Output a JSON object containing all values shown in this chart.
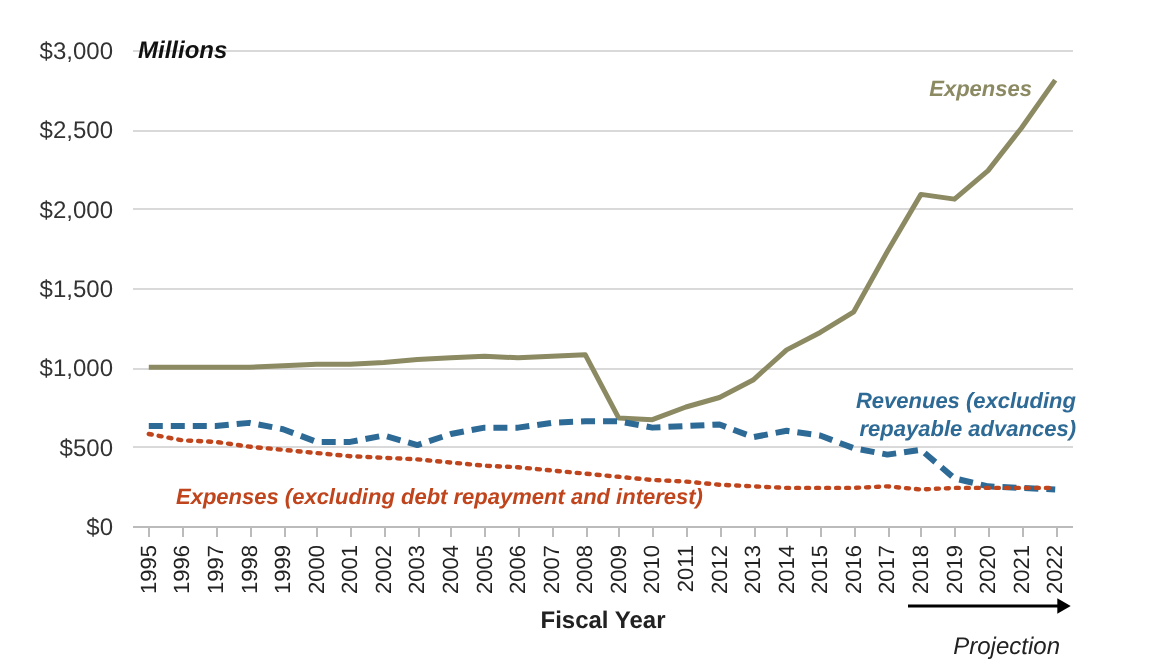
{
  "chart_data": {
    "type": "line",
    "ylabel": "Millions",
    "xlabel": "Fiscal Year",
    "categories": [
      "1995",
      "1996",
      "1997",
      "1998",
      "1999",
      "2000",
      "2001",
      "2002",
      "2003",
      "2004",
      "2005",
      "2006",
      "2007",
      "2008",
      "2009",
      "2010",
      "2011",
      "2012",
      "2013",
      "2014",
      "2015",
      "2016",
      "2017",
      "2018",
      "2019",
      "2020",
      "2021",
      "2022"
    ],
    "series": [
      {
        "name": "Expenses",
        "color": "#8c8a62",
        "line_style": "solid",
        "values": [
          1000,
          1000,
          1000,
          1000,
          1010,
          1020,
          1020,
          1030,
          1050,
          1060,
          1070,
          1060,
          1070,
          1080,
          680,
          670,
          750,
          810,
          920,
          1110,
          1220,
          1350,
          1730,
          2090,
          2060,
          2240,
          2510,
          2810
        ]
      },
      {
        "name": "Revenues (excluding repayable advances)",
        "color": "#2e6a96",
        "line_style": "dashed",
        "values": [
          630,
          630,
          630,
          650,
          610,
          530,
          530,
          570,
          510,
          580,
          620,
          620,
          650,
          660,
          660,
          620,
          630,
          640,
          560,
          600,
          570,
          490,
          450,
          480,
          300,
          250,
          240,
          230
        ]
      },
      {
        "name": "Expenses (excluding debt repayment and interest)",
        "color": "#c0441c",
        "line_style": "dotted",
        "values": [
          580,
          540,
          530,
          500,
          480,
          460,
          440,
          430,
          420,
          400,
          380,
          370,
          350,
          330,
          310,
          290,
          280,
          260,
          250,
          240,
          240,
          240,
          250,
          230,
          240,
          240,
          240,
          240
        ]
      }
    ],
    "ylim": [
      0,
      3000
    ],
    "yticks": [
      {
        "value": 0,
        "label": "$0"
      },
      {
        "value": 500,
        "label": "$500"
      },
      {
        "value": 1000,
        "label": "$1,000"
      },
      {
        "value": 1500,
        "label": "$1,500"
      },
      {
        "value": 2000,
        "label": "$2,000"
      },
      {
        "value": 2500,
        "label": "$2,500"
      },
      {
        "value": 3000,
        "label": "$3,000"
      }
    ],
    "grid": "y",
    "marker": "none",
    "annotations": [
      "Projection"
    ]
  }
}
